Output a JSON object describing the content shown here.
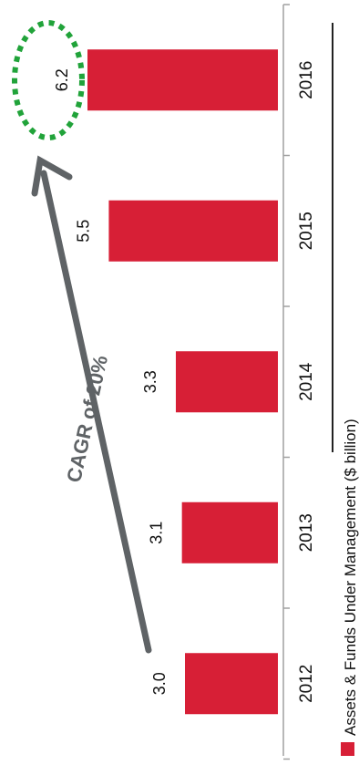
{
  "chart_data": {
    "type": "bar",
    "orientation": "rotated-90-clockwise",
    "categories": [
      "2012",
      "2013",
      "2014",
      "2015",
      "2016"
    ],
    "series": [
      {
        "name": "Assets & Funds Under Management ($ billion)",
        "values": [
          3.0,
          3.1,
          3.3,
          5.5,
          6.2
        ],
        "color": "#d71f36"
      }
    ],
    "value_labels": [
      "3.0",
      "3.1",
      "3.3",
      "5.5",
      "6.2"
    ],
    "ylim": [
      0,
      6.2
    ],
    "grid": false,
    "legend_placement": "right",
    "annotations": {
      "cagr_text": "CAGR of 20%",
      "arrow_color": "#5f6366",
      "highlight_color": "#21a33a",
      "highlighted_category": "2016"
    }
  }
}
